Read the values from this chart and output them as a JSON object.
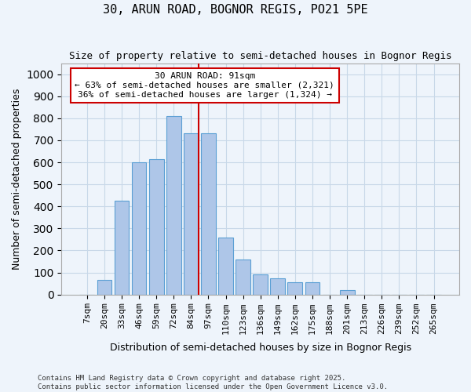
{
  "title": "30, ARUN ROAD, BOGNOR REGIS, PO21 5PE",
  "subtitle": "Size of property relative to semi-detached houses in Bognor Regis",
  "xlabel": "Distribution of semi-detached houses by size in Bognor Regis",
  "ylabel": "Number of semi-detached properties",
  "bins": [
    "7sqm",
    "20sqm",
    "33sqm",
    "46sqm",
    "59sqm",
    "72sqm",
    "84sqm",
    "97sqm",
    "110sqm",
    "123sqm",
    "136sqm",
    "149sqm",
    "162sqm",
    "175sqm",
    "188sqm",
    "201sqm",
    "213sqm",
    "226sqm",
    "239sqm",
    "252sqm",
    "265sqm"
  ],
  "bar_values": [
    0,
    65,
    425,
    600,
    615,
    810,
    730,
    730,
    260,
    160,
    90,
    75,
    55,
    55,
    0,
    20,
    0,
    0,
    0,
    0,
    0
  ],
  "bar_color": "#aec6e8",
  "bar_edge_color": "#5a9fd4",
  "grid_color": "#c8d8e8",
  "background_color": "#eef4fb",
  "marker_bin_index": 6,
  "marker_line_color": "#cc0000",
  "annotation_text": "30 ARUN ROAD: 91sqm\n← 63% of semi-detached houses are smaller (2,321)\n36% of semi-detached houses are larger (1,324) →",
  "annotation_box_color": "#ffffff",
  "annotation_box_edge": "#cc0000",
  "footer": "Contains HM Land Registry data © Crown copyright and database right 2025.\nContains public sector information licensed under the Open Government Licence v3.0.",
  "ylim": [
    0,
    1050
  ],
  "yticks": [
    0,
    100,
    200,
    300,
    400,
    500,
    600,
    700,
    800,
    900,
    1000
  ],
  "figsize": [
    6.0,
    5.0
  ],
  "dpi": 100
}
